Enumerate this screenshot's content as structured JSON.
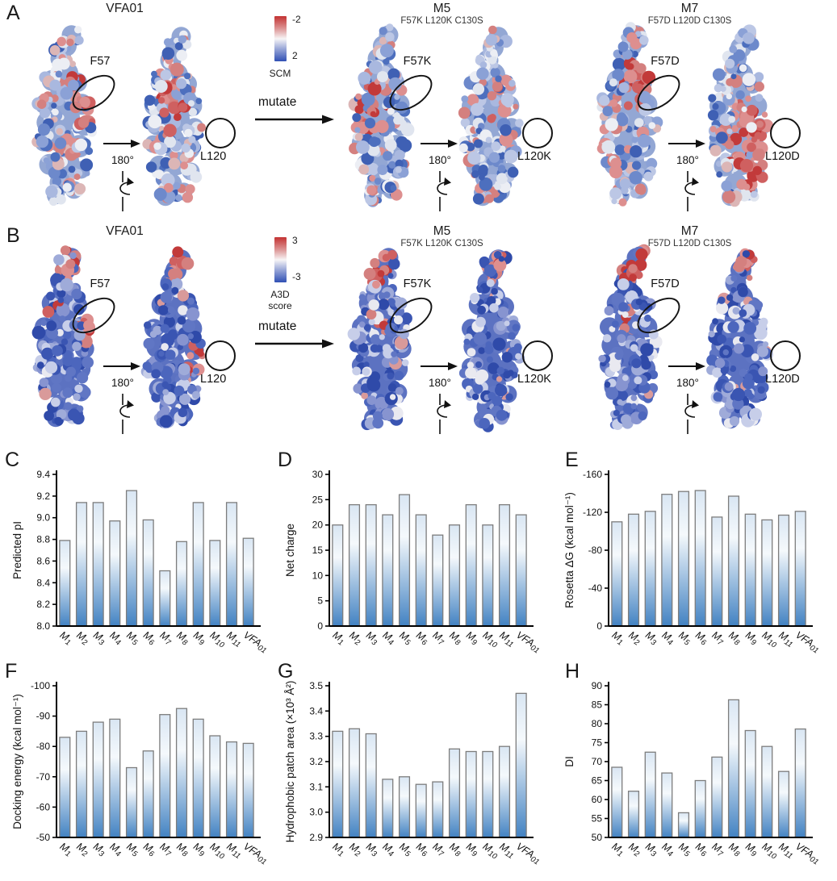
{
  "panel_letters": [
    "A",
    "B",
    "C",
    "D",
    "E",
    "F",
    "G",
    "H"
  ],
  "panelA": {
    "colorbar": {
      "top_label": "-2",
      "bottom_label": "2",
      "caption": "SCM"
    },
    "mutate_label": "mutate",
    "rotation_label": "180°",
    "groups": [
      {
        "title": "VFA01",
        "subtitle": "",
        "front_label": "F57",
        "back_label": "L120"
      },
      {
        "title": "M5",
        "subtitle": "F57K L120K C130S",
        "front_label": "F57K",
        "back_label": "L120K"
      },
      {
        "title": "M7",
        "subtitle": "F57D L120D C130S",
        "front_label": "F57D",
        "back_label": "L120D"
      }
    ]
  },
  "panelB": {
    "colorbar": {
      "top_label": "3",
      "bottom_label": "-3",
      "caption": "A3D score"
    },
    "mutate_label": "mutate",
    "rotation_label": "180°",
    "groups": [
      {
        "title": "VFA01",
        "subtitle": "",
        "front_label": "F57",
        "back_label": "L120"
      },
      {
        "title": "M5",
        "subtitle": "F57K L120K C130S",
        "front_label": "F57K",
        "back_label": "L120K"
      },
      {
        "title": "M7",
        "subtitle": "F57D L120D C130S",
        "front_label": "F57D",
        "back_label": "L120D"
      }
    ]
  },
  "chart_data": [
    {
      "panel": "C",
      "type": "bar",
      "title": "",
      "xlabel": "",
      "ylabel": "Predicted pI",
      "categories": [
        "M1",
        "M2",
        "M3",
        "M4",
        "M5",
        "M6",
        "M7",
        "M8",
        "M9",
        "M10",
        "M11",
        "VFA01"
      ],
      "values": [
        8.79,
        9.14,
        9.14,
        8.97,
        9.25,
        8.98,
        8.51,
        8.78,
        9.14,
        8.79,
        9.14,
        8.81
      ],
      "ylim": [
        8.0,
        9.4
      ],
      "yticks": [
        "8.0",
        "8.2",
        "8.4",
        "8.6",
        "8.8",
        "9.0",
        "9.2",
        "9.4"
      ],
      "grid": false,
      "legend": null
    },
    {
      "panel": "D",
      "type": "bar",
      "title": "",
      "xlabel": "",
      "ylabel": "Net charge",
      "categories": [
        "M1",
        "M2",
        "M3",
        "M4",
        "M5",
        "M6",
        "M7",
        "M8",
        "M9",
        "M10",
        "M11",
        "VFA01"
      ],
      "values": [
        20,
        24,
        24,
        22,
        26,
        22,
        18,
        20,
        24,
        20,
        24,
        22
      ],
      "ylim": [
        0,
        30
      ],
      "yticks": [
        "0",
        "5",
        "10",
        "15",
        "20",
        "25",
        "30"
      ],
      "grid": false,
      "legend": null
    },
    {
      "panel": "E",
      "type": "bar",
      "title": "",
      "xlabel": "",
      "ylabel": "Rosetta ΔG (kcal mol⁻¹)",
      "categories": [
        "M1",
        "M2",
        "M3",
        "M4",
        "M5",
        "M6",
        "M7",
        "M8",
        "M9",
        "M10",
        "M11",
        "VFA01"
      ],
      "values": [
        -110,
        -118,
        -121,
        -139,
        -142,
        -143,
        -115,
        -137,
        -118,
        -112,
        -117,
        -121
      ],
      "ylim": [
        0,
        -160
      ],
      "yticks": [
        "0",
        "-40",
        "-80",
        "-120",
        "-160"
      ],
      "grid": false,
      "legend": null
    },
    {
      "panel": "F",
      "type": "bar",
      "title": "",
      "xlabel": "",
      "ylabel": "Docking energy (kcal mol⁻¹)",
      "categories": [
        "M1",
        "M2",
        "M3",
        "M4",
        "M5",
        "M6",
        "M7",
        "M8",
        "M9",
        "M10",
        "M11",
        "VFA01"
      ],
      "values": [
        -83,
        -85,
        -88,
        -89,
        -73,
        -78.5,
        -90.5,
        -92.5,
        -89,
        -83.5,
        -81.5,
        -81
      ],
      "ylim": [
        -50,
        -100
      ],
      "yticks": [
        "-50",
        "-60",
        "-70",
        "-80",
        "-90",
        "-100"
      ],
      "grid": false,
      "legend": null
    },
    {
      "panel": "G",
      "type": "bar",
      "title": "",
      "xlabel": "",
      "ylabel": "Hydrophobic patch area (×10³ Å²)",
      "categories": [
        "M1",
        "M2",
        "M3",
        "M4",
        "M5",
        "M6",
        "M7",
        "M8",
        "M9",
        "M10",
        "M11",
        "VFA01"
      ],
      "values": [
        3.32,
        3.33,
        3.31,
        3.13,
        3.14,
        3.11,
        3.12,
        3.25,
        3.24,
        3.24,
        3.26,
        3.47
      ],
      "ylim": [
        2.9,
        3.5
      ],
      "yticks": [
        "2.9",
        "3.0",
        "3.1",
        "3.2",
        "3.3",
        "3.4",
        "3.5"
      ],
      "grid": false,
      "legend": null
    },
    {
      "panel": "H",
      "type": "bar",
      "title": "",
      "xlabel": "",
      "ylabel": "DI",
      "categories": [
        "M1",
        "M2",
        "M3",
        "M4",
        "M5",
        "M6",
        "M7",
        "M8",
        "M9",
        "M10",
        "M11",
        "VFA01"
      ],
      "values": [
        68.5,
        62.2,
        72.5,
        67.0,
        56.5,
        65.0,
        71.2,
        86.3,
        78.2,
        74.0,
        67.4,
        78.6
      ],
      "ylim": [
        50,
        90
      ],
      "yticks": [
        "50",
        "55",
        "60",
        "65",
        "70",
        "75",
        "80",
        "85",
        "90"
      ],
      "grid": false,
      "legend": null
    }
  ],
  "colors": {
    "bar_fill_top": "#d9e6f3",
    "bar_fill_mid": "#f5f9fc",
    "bar_fill_bottom": "#4282c2",
    "bar_stroke": "#7d7d7d",
    "axis": "#000000",
    "surface_red": "#c23a3a",
    "surface_blue": "#3a55b2"
  }
}
